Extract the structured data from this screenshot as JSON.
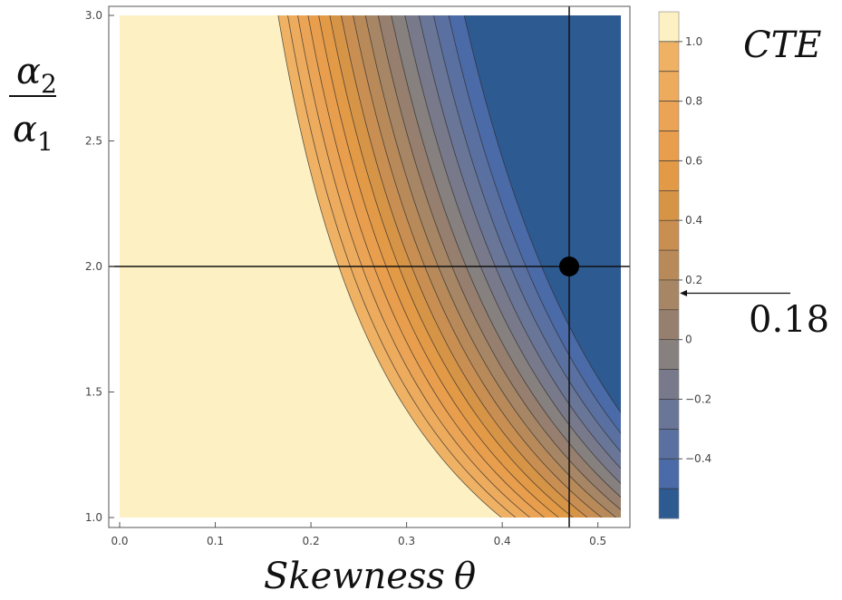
{
  "chart_data": {
    "type": "contour",
    "xlabel_main": "Skewness",
    "xlabel_symbol": "θ",
    "ylabel_num": "α",
    "ylabel_num_sub": "2",
    "ylabel_den": "α",
    "ylabel_den_sub": "1",
    "xlim": [
      0,
      0.524
    ],
    "ylim": [
      1.0,
      3.0
    ],
    "x_ticks": [
      0.0,
      0.1,
      0.2,
      0.3,
      0.4,
      0.5
    ],
    "x_tick_labels": [
      "0.0",
      "0.1",
      "0.2",
      "0.3",
      "0.4",
      "0.5"
    ],
    "y_ticks": [
      1.0,
      1.5,
      2.0,
      2.5,
      3.0
    ],
    "y_tick_labels": [
      "1.0",
      "1.5",
      "2.0",
      "2.5",
      "3.0"
    ],
    "contour_levels": [
      -0.5,
      -0.4,
      -0.3,
      -0.2,
      -0.1,
      0.0,
      0.1,
      0.2,
      0.3,
      0.4,
      0.5,
      0.6,
      0.7,
      0.8,
      0.9,
      1.0
    ],
    "contour_colors": [
      "#2e5a92",
      "#4a6aa8",
      "#5a70a0",
      "#697698",
      "#787a8c",
      "#86807e",
      "#967f6e",
      "#a68664",
      "#b88a5a",
      "#c98f52",
      "#d69447",
      "#e39a47",
      "#e89e4c",
      "#eba455",
      "#edab5e",
      "#efb265",
      "#fdf0c2"
    ],
    "reference_lines": {
      "x": 0.47,
      "y": 2.0
    },
    "marker_point": {
      "x": 0.47,
      "y": 2.0
    },
    "colorbar": {
      "title": "CTE",
      "range": [
        -0.6,
        1.1
      ],
      "ticks": [
        1.0,
        0.8,
        0.6,
        0.4,
        0.2,
        0.0,
        -0.2,
        -0.4
      ],
      "tick_labels": [
        "1.0",
        "0.8",
        "0.6",
        "0.4",
        "0.2",
        "0",
        "−0.2",
        "−0.4"
      ],
      "annotation_value": 0.18,
      "annotation_label": "0.18"
    }
  }
}
